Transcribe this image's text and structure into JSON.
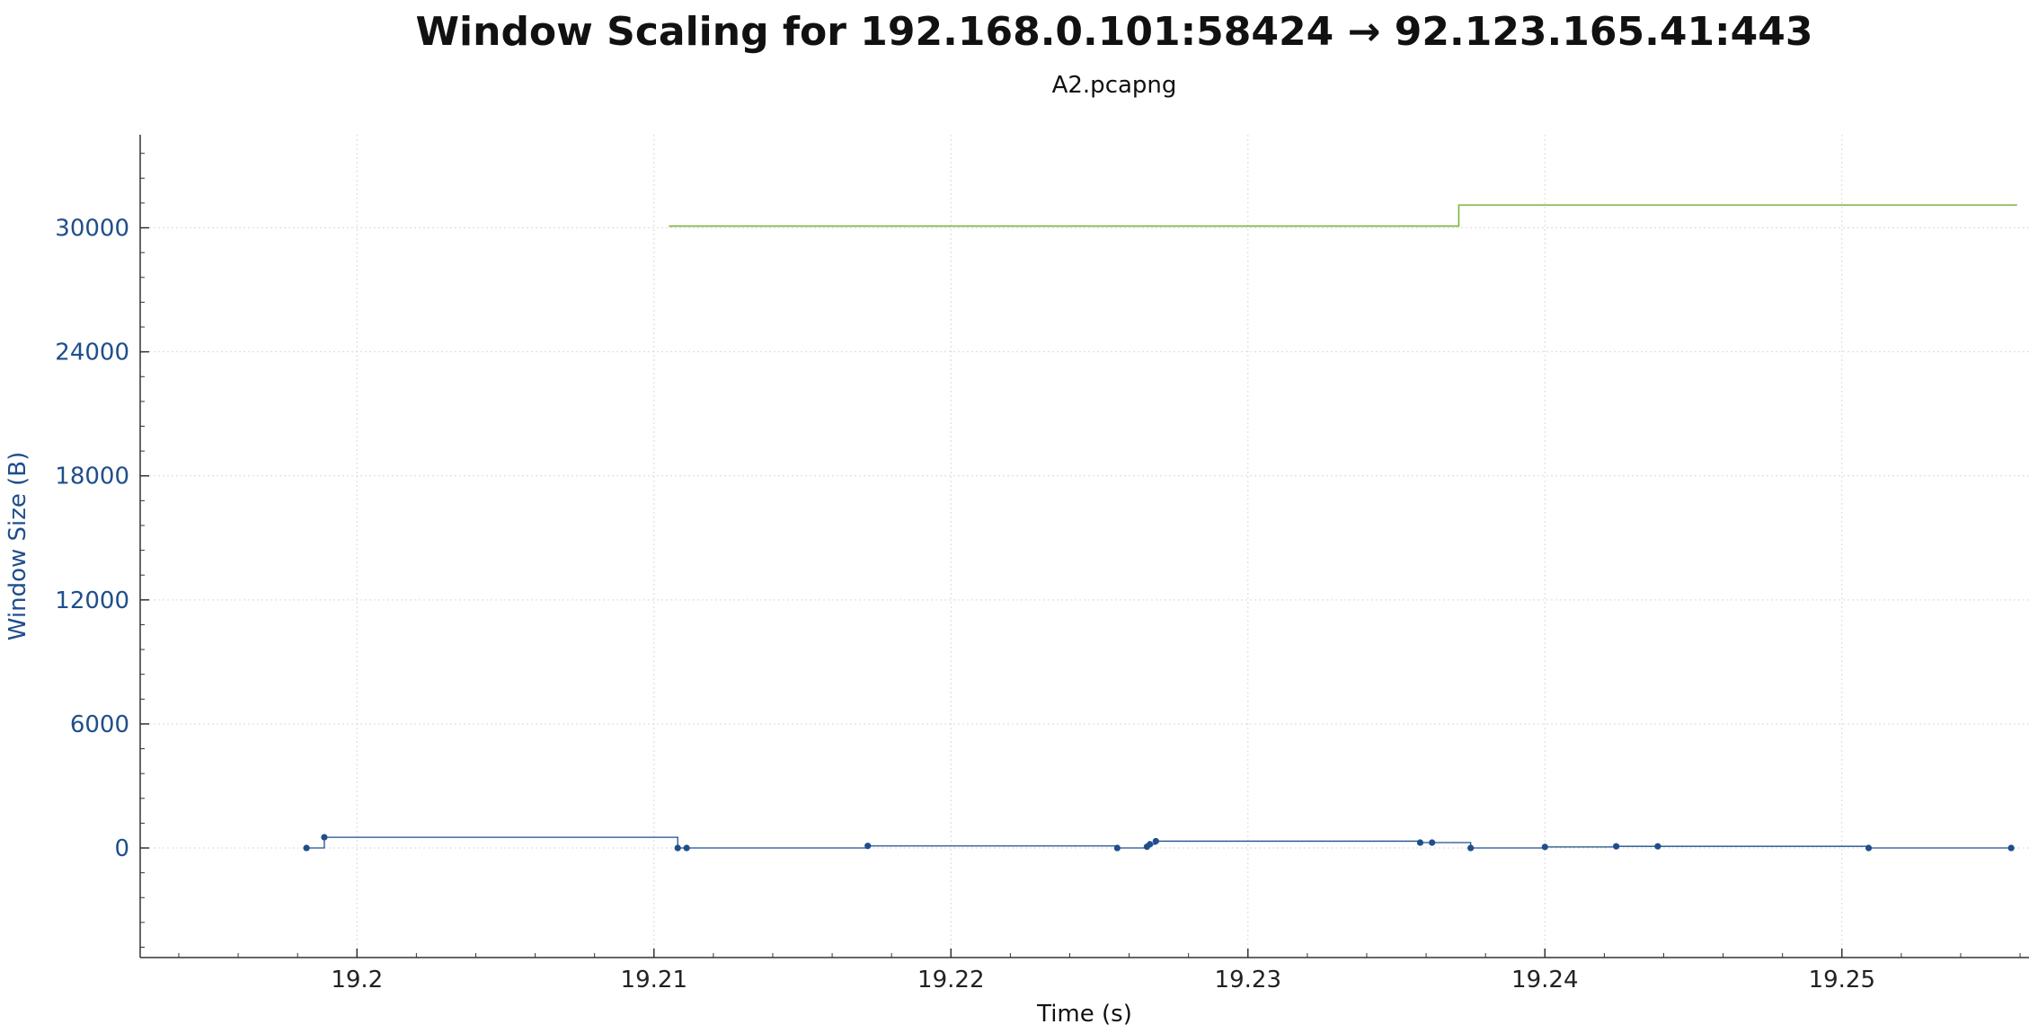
{
  "chart_data": {
    "type": "line",
    "title": "Window Scaling for 192.168.0.101:58424 → 92.123.165.41:443",
    "subtitle": "A2.pcapng",
    "xlabel": "Time (s)",
    "ylabel": "Window Size (B)",
    "xlim": [
      19.1927,
      19.2563
    ],
    "ylim": [
      -5300,
      34500
    ],
    "grid": true,
    "x_ticks": [
      19.2,
      19.21,
      19.22,
      19.23,
      19.24,
      19.25
    ],
    "x_tick_labels": [
      "19.2",
      "19.21",
      "19.22",
      "19.23",
      "19.24",
      "19.25"
    ],
    "y_ticks": [
      0,
      6000,
      12000,
      18000,
      24000,
      30000
    ],
    "y_tick_labels": [
      "0",
      "6000",
      "12000",
      "18000",
      "24000",
      "30000"
    ],
    "colors": {
      "bytes_in_flight": "#1f4e8c",
      "receive_window": "#7cb342",
      "grid": "#d9d9d9",
      "axis": "#333333"
    },
    "series": [
      {
        "style": "step-points",
        "color_key": "bytes_in_flight",
        "x": [
          19.1983,
          19.1989,
          19.2108,
          19.2111,
          19.2172,
          19.2256,
          19.2266,
          19.2267,
          19.2269,
          19.2358,
          19.2362,
          19.2375,
          19.24,
          19.2424,
          19.2438,
          19.2509,
          19.2557
        ],
        "y": [
          0,
          517,
          0,
          0,
          100,
          0,
          60,
          180,
          330,
          260,
          260,
          0,
          50,
          80,
          80,
          0,
          0
        ]
      },
      {
        "style": "step",
        "color_key": "receive_window",
        "x": [
          19.2105,
          19.2371,
          19.2371,
          19.2559
        ],
        "y": [
          30080,
          30080,
          31100,
          31100
        ]
      }
    ]
  }
}
